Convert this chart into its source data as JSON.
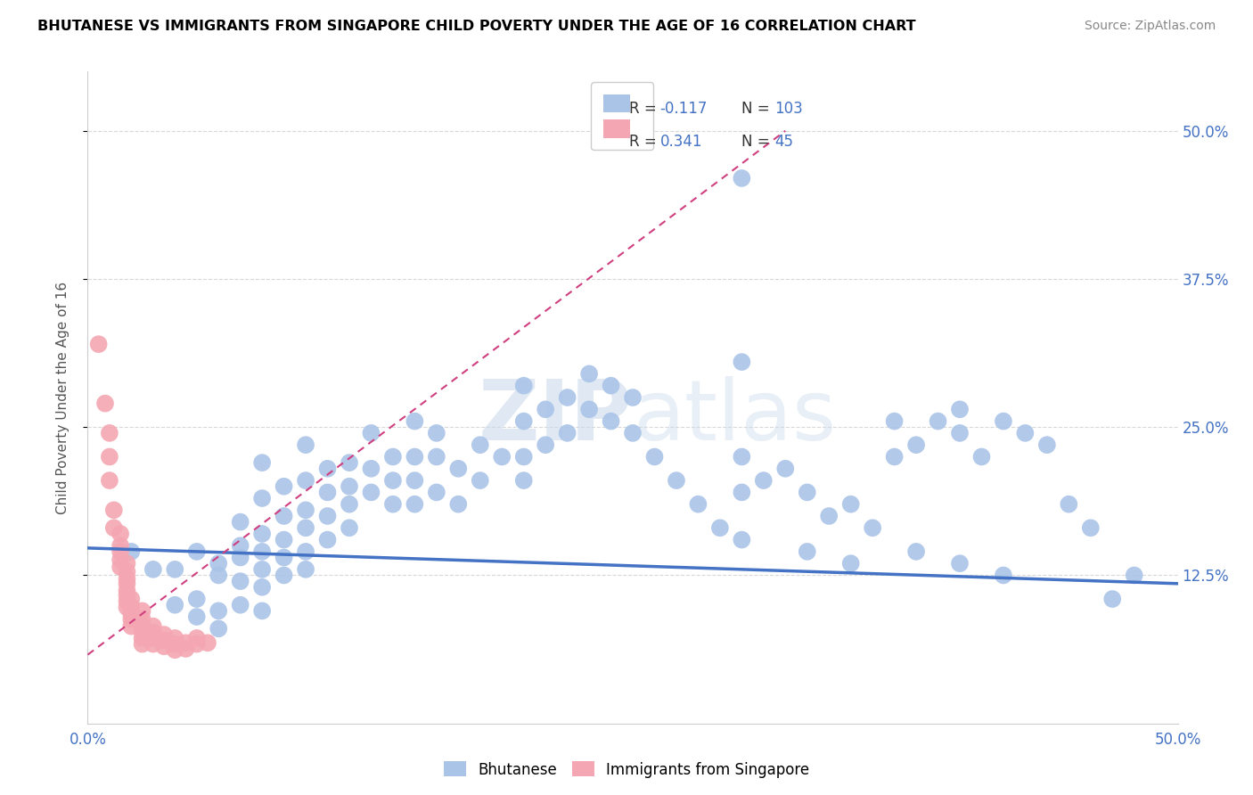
{
  "title": "BHUTANESE VS IMMIGRANTS FROM SINGAPORE CHILD POVERTY UNDER THE AGE OF 16 CORRELATION CHART",
  "source": "Source: ZipAtlas.com",
  "ylabel": "Child Poverty Under the Age of 16",
  "ytick_vals": [
    0.125,
    0.25,
    0.375,
    0.5
  ],
  "xlim": [
    0.0,
    0.5
  ],
  "ylim": [
    0.0,
    0.55
  ],
  "blue_scatter": [
    [
      0.02,
      0.145
    ],
    [
      0.03,
      0.13
    ],
    [
      0.04,
      0.13
    ],
    [
      0.04,
      0.1
    ],
    [
      0.05,
      0.145
    ],
    [
      0.05,
      0.105
    ],
    [
      0.05,
      0.09
    ],
    [
      0.06,
      0.135
    ],
    [
      0.06,
      0.125
    ],
    [
      0.06,
      0.095
    ],
    [
      0.06,
      0.08
    ],
    [
      0.07,
      0.17
    ],
    [
      0.07,
      0.15
    ],
    [
      0.07,
      0.14
    ],
    [
      0.07,
      0.12
    ],
    [
      0.07,
      0.1
    ],
    [
      0.08,
      0.22
    ],
    [
      0.08,
      0.19
    ],
    [
      0.08,
      0.16
    ],
    [
      0.08,
      0.145
    ],
    [
      0.08,
      0.13
    ],
    [
      0.08,
      0.115
    ],
    [
      0.08,
      0.095
    ],
    [
      0.09,
      0.2
    ],
    [
      0.09,
      0.175
    ],
    [
      0.09,
      0.155
    ],
    [
      0.09,
      0.14
    ],
    [
      0.09,
      0.125
    ],
    [
      0.1,
      0.235
    ],
    [
      0.1,
      0.205
    ],
    [
      0.1,
      0.18
    ],
    [
      0.1,
      0.165
    ],
    [
      0.1,
      0.145
    ],
    [
      0.1,
      0.13
    ],
    [
      0.11,
      0.215
    ],
    [
      0.11,
      0.195
    ],
    [
      0.11,
      0.175
    ],
    [
      0.11,
      0.155
    ],
    [
      0.12,
      0.22
    ],
    [
      0.12,
      0.2
    ],
    [
      0.12,
      0.185
    ],
    [
      0.12,
      0.165
    ],
    [
      0.13,
      0.245
    ],
    [
      0.13,
      0.215
    ],
    [
      0.13,
      0.195
    ],
    [
      0.14,
      0.225
    ],
    [
      0.14,
      0.205
    ],
    [
      0.14,
      0.185
    ],
    [
      0.15,
      0.255
    ],
    [
      0.15,
      0.225
    ],
    [
      0.15,
      0.205
    ],
    [
      0.15,
      0.185
    ],
    [
      0.16,
      0.245
    ],
    [
      0.16,
      0.225
    ],
    [
      0.16,
      0.195
    ],
    [
      0.17,
      0.215
    ],
    [
      0.17,
      0.185
    ],
    [
      0.18,
      0.235
    ],
    [
      0.18,
      0.205
    ],
    [
      0.19,
      0.225
    ],
    [
      0.2,
      0.285
    ],
    [
      0.2,
      0.255
    ],
    [
      0.2,
      0.225
    ],
    [
      0.2,
      0.205
    ],
    [
      0.21,
      0.265
    ],
    [
      0.21,
      0.235
    ],
    [
      0.22,
      0.275
    ],
    [
      0.22,
      0.245
    ],
    [
      0.23,
      0.295
    ],
    [
      0.23,
      0.265
    ],
    [
      0.24,
      0.285
    ],
    [
      0.24,
      0.255
    ],
    [
      0.25,
      0.275
    ],
    [
      0.25,
      0.245
    ],
    [
      0.26,
      0.225
    ],
    [
      0.27,
      0.205
    ],
    [
      0.28,
      0.185
    ],
    [
      0.29,
      0.165
    ],
    [
      0.3,
      0.46
    ],
    [
      0.3,
      0.305
    ],
    [
      0.3,
      0.225
    ],
    [
      0.3,
      0.195
    ],
    [
      0.31,
      0.205
    ],
    [
      0.32,
      0.215
    ],
    [
      0.33,
      0.195
    ],
    [
      0.34,
      0.175
    ],
    [
      0.35,
      0.185
    ],
    [
      0.36,
      0.165
    ],
    [
      0.37,
      0.255
    ],
    [
      0.37,
      0.225
    ],
    [
      0.38,
      0.235
    ],
    [
      0.39,
      0.255
    ],
    [
      0.4,
      0.265
    ],
    [
      0.4,
      0.245
    ],
    [
      0.41,
      0.225
    ],
    [
      0.42,
      0.255
    ],
    [
      0.43,
      0.245
    ],
    [
      0.44,
      0.235
    ],
    [
      0.45,
      0.185
    ],
    [
      0.46,
      0.165
    ],
    [
      0.47,
      0.105
    ],
    [
      0.48,
      0.125
    ],
    [
      0.3,
      0.155
    ],
    [
      0.33,
      0.145
    ],
    [
      0.35,
      0.135
    ],
    [
      0.38,
      0.145
    ],
    [
      0.4,
      0.135
    ],
    [
      0.42,
      0.125
    ]
  ],
  "pink_scatter": [
    [
      0.005,
      0.32
    ],
    [
      0.008,
      0.27
    ],
    [
      0.01,
      0.245
    ],
    [
      0.01,
      0.225
    ],
    [
      0.01,
      0.205
    ],
    [
      0.012,
      0.18
    ],
    [
      0.012,
      0.165
    ],
    [
      0.015,
      0.16
    ],
    [
      0.015,
      0.15
    ],
    [
      0.015,
      0.145
    ],
    [
      0.015,
      0.138
    ],
    [
      0.015,
      0.132
    ],
    [
      0.018,
      0.135
    ],
    [
      0.018,
      0.128
    ],
    [
      0.018,
      0.122
    ],
    [
      0.018,
      0.118
    ],
    [
      0.018,
      0.112
    ],
    [
      0.018,
      0.108
    ],
    [
      0.018,
      0.103
    ],
    [
      0.018,
      0.098
    ],
    [
      0.02,
      0.105
    ],
    [
      0.02,
      0.098
    ],
    [
      0.02,
      0.092
    ],
    [
      0.02,
      0.088
    ],
    [
      0.02,
      0.082
    ],
    [
      0.025,
      0.095
    ],
    [
      0.025,
      0.088
    ],
    [
      0.025,
      0.082
    ],
    [
      0.025,
      0.078
    ],
    [
      0.025,
      0.072
    ],
    [
      0.025,
      0.067
    ],
    [
      0.03,
      0.082
    ],
    [
      0.03,
      0.077
    ],
    [
      0.03,
      0.072
    ],
    [
      0.03,
      0.067
    ],
    [
      0.035,
      0.075
    ],
    [
      0.035,
      0.07
    ],
    [
      0.035,
      0.065
    ],
    [
      0.04,
      0.072
    ],
    [
      0.04,
      0.067
    ],
    [
      0.04,
      0.062
    ],
    [
      0.045,
      0.068
    ],
    [
      0.045,
      0.063
    ],
    [
      0.05,
      0.072
    ],
    [
      0.05,
      0.067
    ],
    [
      0.055,
      0.068
    ]
  ],
  "blue_line": {
    "x0": 0.0,
    "y0": 0.148,
    "x1": 0.5,
    "y1": 0.118
  },
  "pink_line": {
    "x0": 0.0,
    "y0": 0.058,
    "x1": 0.32,
    "y1": 0.5
  },
  "watermark_zip": "ZIP",
  "watermark_atlas": "atlas",
  "blue_color": "#aac4e8",
  "pink_color": "#f4a7b2",
  "blue_line_color": "#4472c4",
  "pink_line_color": "#d04080",
  "background_color": "#ffffff",
  "grid_color": "#d8d8d8",
  "right_tick_color": "#4472c4",
  "left_tick_color": "#888888"
}
